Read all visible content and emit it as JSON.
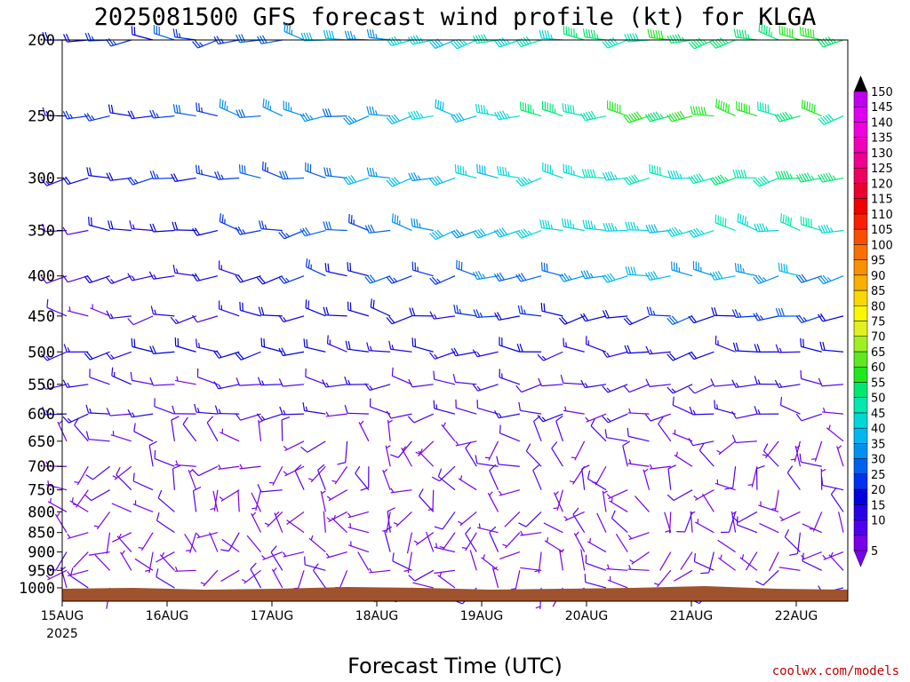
{
  "chart_data": {
    "type": "wind-barb-profile",
    "title": "2025081500 GFS forecast wind profile (kt) for KLGA",
    "xlabel": "Forecast Time (UTC)",
    "credit": "coolwx.com/models",
    "y_axis": {
      "scale": "log-pressure",
      "range": [
        1040,
        200
      ],
      "tick_labels": [
        "200",
        "250",
        "300",
        "350",
        "400",
        "450",
        "500",
        "550",
        "600",
        "650",
        "700",
        "750",
        "800",
        "850",
        "900",
        "950",
        "1000"
      ]
    },
    "x_axis": {
      "range_days_labels": [
        "15AUG",
        "16AUG",
        "17AUG",
        "18AUG",
        "19AUG",
        "20AUG",
        "21AUG",
        "22AUG"
      ],
      "first_label_year": "2025"
    },
    "colorbar": {
      "levels": [
        5,
        10,
        15,
        20,
        25,
        30,
        35,
        40,
        45,
        50,
        55,
        60,
        65,
        70,
        75,
        80,
        85,
        90,
        95,
        100,
        105,
        110,
        115,
        120,
        125,
        130,
        135,
        140,
        145,
        150
      ],
      "colors": [
        "#7a00e8",
        "#5000f0",
        "#2800e8",
        "#0000e0",
        "#0030f0",
        "#0060f0",
        "#0090f0",
        "#00b8f0",
        "#00d8d8",
        "#00e8b0",
        "#00e870",
        "#20e820",
        "#60e820",
        "#a0f020",
        "#e0f020",
        "#f8f800",
        "#f8d800",
        "#f8b000",
        "#f89000",
        "#f87000",
        "#f85000",
        "#f82000",
        "#f00000",
        "#e80030",
        "#f00060",
        "#f00090",
        "#f000b8",
        "#f000e0",
        "#e000f0",
        "#c000f0"
      ]
    },
    "pressure_levels": [
      1000,
      950,
      900,
      850,
      800,
      750,
      700,
      650,
      600,
      550,
      500,
      450,
      400,
      350,
      300,
      250,
      200
    ],
    "time_range_hours": [
      0,
      180
    ],
    "ground_color": "#a0522d"
  }
}
